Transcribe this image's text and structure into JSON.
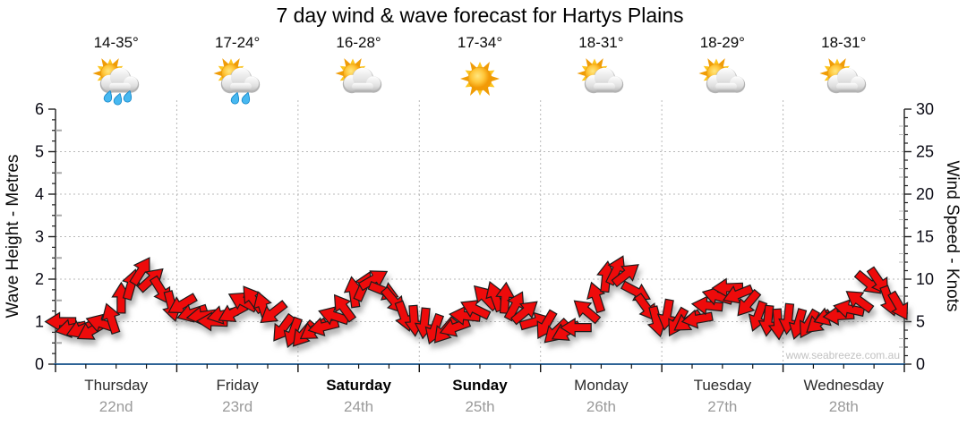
{
  "title": "7 day wind & wave forecast for Hartys Plains",
  "watermark": "www.seabreeze.com.au",
  "axes": {
    "left_title": "Wave Height - Metres",
    "right_title": "Wind Speed - Knots",
    "left_ticks": [
      "0",
      "1",
      "2",
      "3",
      "4",
      "5",
      "6"
    ],
    "right_ticks": [
      "0",
      "5",
      "10",
      "15",
      "20",
      "25",
      "30"
    ]
  },
  "days": [
    {
      "name": "Thursday",
      "date": "22nd",
      "temp": "14-35°",
      "icon": "sun-cloud-rain3",
      "bold": false
    },
    {
      "name": "Friday",
      "date": "23rd",
      "temp": "17-24°",
      "icon": "sun-cloud-rain2",
      "bold": false
    },
    {
      "name": "Saturday",
      "date": "24th",
      "temp": "16-28°",
      "icon": "sun-cloud",
      "bold": true
    },
    {
      "name": "Sunday",
      "date": "25th",
      "temp": "17-34°",
      "icon": "sun",
      "bold": true
    },
    {
      "name": "Monday",
      "date": "26th",
      "temp": "18-31°",
      "icon": "sun-cloud",
      "bold": false
    },
    {
      "name": "Tuesday",
      "date": "27th",
      "temp": "18-29°",
      "icon": "sun-cloud",
      "bold": false
    },
    {
      "name": "Wednesday",
      "date": "28th",
      "temp": "18-31°",
      "icon": "sun-cloud",
      "bold": false
    }
  ],
  "chart_data": {
    "type": "wind-arrow-series",
    "title": "7 day wind & wave forecast for Hartys Plains",
    "x_axis": {
      "unit": "days",
      "categories": [
        "Thursday 22nd",
        "Friday 23rd",
        "Saturday 24th",
        "Sunday 25th",
        "Monday 26th",
        "Tuesday 27th",
        "Wednesday 28th"
      ],
      "minor_tick_hours": 6
    },
    "y_left": {
      "label": "Wave Height - Metres",
      "range": [
        0,
        6
      ],
      "major": 1,
      "minor": 0.25,
      "grid": true
    },
    "y_right": {
      "label": "Wind Speed - Knots",
      "range": [
        0,
        30
      ],
      "major": 5,
      "minor": 1
    },
    "series": [
      {
        "name": "Wind speed & direction (red arrows, right axis)",
        "step_hours": 2,
        "speeds_kt": [
          5.0,
          4.2,
          4.1,
          3.9,
          4.8,
          5.4,
          7.8,
          9.4,
          11.0,
          10.0,
          8.6,
          6.8,
          7.0,
          6.0,
          5.7,
          5.0,
          5.8,
          6.0,
          7.4,
          7.7,
          6.8,
          6.0,
          4.2,
          3.7,
          3.5,
          4.0,
          4.4,
          5.7,
          6.7,
          8.5,
          9.2,
          10.0,
          8.6,
          7.4,
          5.6,
          5.1,
          4.8,
          4.1,
          3.9,
          4.3,
          5.7,
          6.5,
          7.9,
          8.0,
          7.8,
          6.9,
          6.2,
          5.0,
          4.6,
          3.8,
          3.8,
          4.3,
          6.3,
          7.9,
          10.3,
          11.1,
          10.6,
          8.5,
          6.6,
          5.0,
          5.8,
          4.9,
          5.0,
          5.3,
          6.9,
          8.0,
          9.0,
          8.2,
          7.1,
          5.6,
          5.1,
          4.7,
          5.3,
          4.7,
          4.7,
          4.9,
          5.6,
          5.7,
          6.5,
          7.5,
          9.5,
          9.7,
          7.4,
          6.8
        ],
        "dirs_deg_screen": [
          180,
          168,
          158,
          150,
          198,
          252,
          270,
          286,
          302,
          318,
          58,
          76,
          150,
          162,
          172,
          182,
          166,
          152,
          208,
          234,
          252,
          142,
          126,
          110,
          130,
          146,
          166,
          198,
          234,
          262,
          294,
          330,
          22,
          50,
          70,
          86,
          96,
          110,
          130,
          160,
          186,
          206,
          226,
          250,
          274,
          298,
          320,
          344,
          120,
          136,
          152,
          180,
          220,
          252,
          276,
          296,
          322,
          28,
          54,
          76,
          100,
          120,
          146,
          170,
          186,
          196,
          178,
          158,
          130,
          110,
          96,
          86,
          96,
          106,
          120,
          140,
          160,
          176,
          192,
          216,
          40,
          56,
          70,
          60
        ]
      }
    ],
    "legend": false,
    "colors": {
      "arrow_fill": "#ee0b0b",
      "arrow_outline": "#1b1b1b",
      "bottom_axis": "#2e6496",
      "grid": "#b8b8b8",
      "tick_label": "#0a0a14",
      "day_name": "#2b2b2b",
      "day_name_weekend": "#000000",
      "date_label": "#9a9a9a",
      "watermark": "#c2c2c2"
    }
  }
}
